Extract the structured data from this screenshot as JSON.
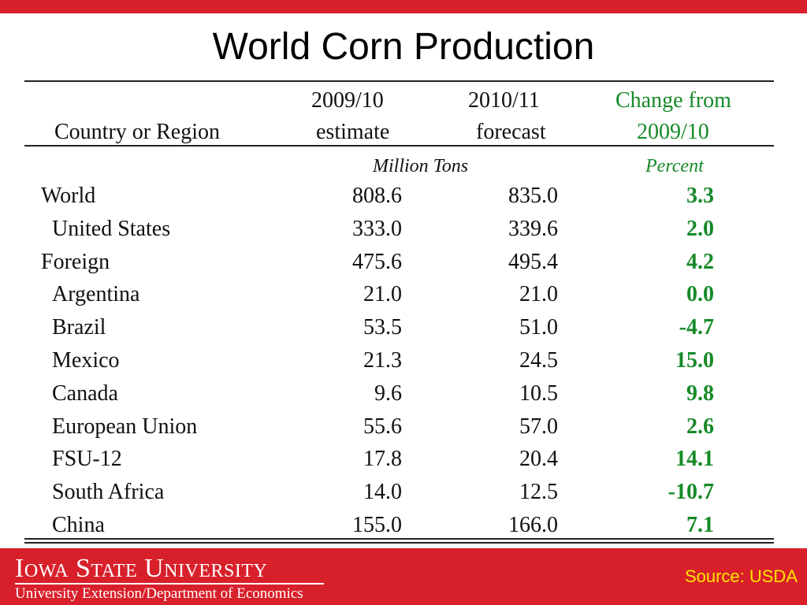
{
  "slide": {
    "title": "World Corn Production"
  },
  "table": {
    "headers": {
      "country": "Country or Region",
      "estimate_line1": "2009/10",
      "estimate_line2": "estimate",
      "forecast_line1": "2010/11",
      "forecast_line2": "forecast",
      "change_line1": "Change from",
      "change_line2": "2009/10"
    },
    "units": {
      "tons": "Million Tons",
      "percent": "Percent"
    },
    "rows": [
      {
        "name": "World",
        "estimate": "808.6",
        "forecast": "835.0",
        "change": "3.3"
      },
      {
        "name": "United States",
        "estimate": "333.0",
        "forecast": "339.6",
        "change": "2.0"
      },
      {
        "name": "Foreign",
        "estimate": "475.6",
        "forecast": "495.4",
        "change": "4.2"
      },
      {
        "name": "Argentina",
        "estimate": "21.0",
        "forecast": "21.0",
        "change": "0.0"
      },
      {
        "name": "Brazil",
        "estimate": "53.5",
        "forecast": "51.0",
        "change": "-4.7"
      },
      {
        "name": "Mexico",
        "estimate": "21.3",
        "forecast": "24.5",
        "change": "15.0"
      },
      {
        "name": "Canada",
        "estimate": "9.6",
        "forecast": "10.5",
        "change": "9.8"
      },
      {
        "name": "European Union",
        "estimate": "55.6",
        "forecast": "57.0",
        "change": "2.6"
      },
      {
        "name": "FSU-12",
        "estimate": "17.8",
        "forecast": "20.4",
        "change": "14.1"
      },
      {
        "name": "South Africa",
        "estimate": "14.0",
        "forecast": "12.5",
        "change": "-10.7"
      },
      {
        "name": "China",
        "estimate": "155.0",
        "forecast": "166.0",
        "change": "7.1"
      }
    ]
  },
  "footer": {
    "university_name": "Iowa State University",
    "department": "University Extension/Department of Economics",
    "source": "Source: USDA"
  },
  "colors": {
    "brand_red": "#d8202b",
    "change_green": "#168a28",
    "source_yellow": "#ffe400"
  }
}
